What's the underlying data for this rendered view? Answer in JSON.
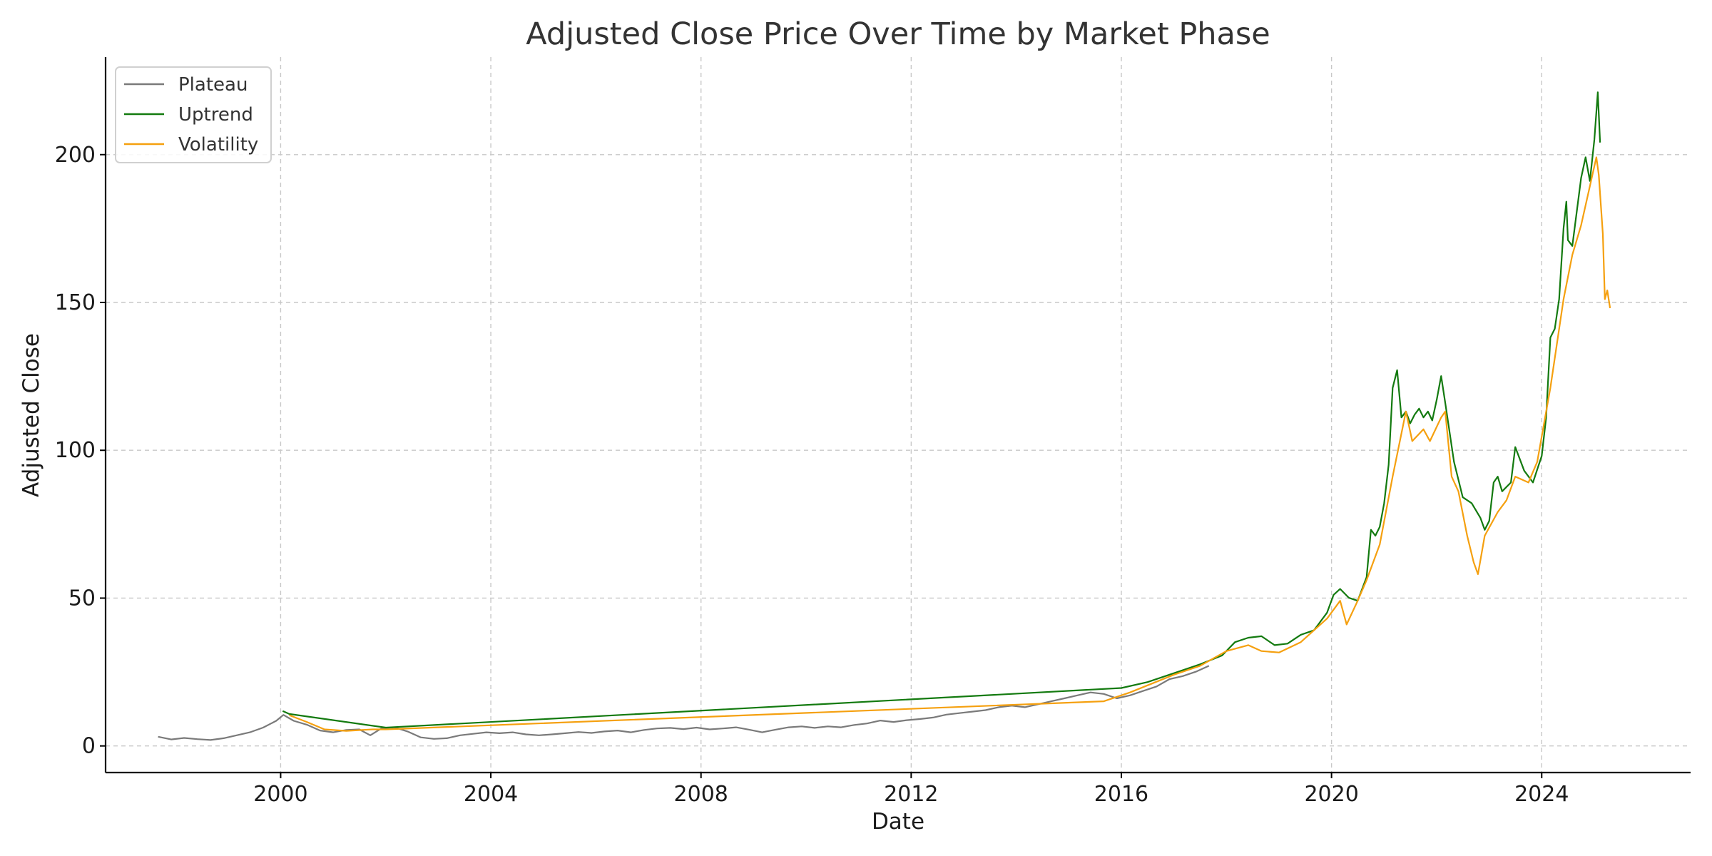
{
  "chart_data": {
    "type": "line",
    "title": "Adjusted Close Price Over Time by Market Phase",
    "xlabel": "Date",
    "ylabel": "Adjusted Close",
    "x_type": "date",
    "xlim": [
      "1996-09-01",
      "2026-11-01"
    ],
    "ylim": [
      -9,
      233
    ],
    "x_ticks": [
      "2000",
      "2004",
      "2008",
      "2012",
      "2016",
      "2020",
      "2024"
    ],
    "y_ticks": [
      "0",
      "50",
      "100",
      "150",
      "200"
    ],
    "grid": true,
    "legend_position": "top-left",
    "series": [
      {
        "name": "Plateau",
        "color": "#7a7a7a",
        "points": [
          [
            "1997-09-01",
            3.1
          ],
          [
            "1997-12-01",
            2.2
          ],
          [
            "1998-03-01",
            2.7
          ],
          [
            "1998-06-01",
            2.3
          ],
          [
            "1998-09-01",
            2.0
          ],
          [
            "1998-12-01",
            2.6
          ],
          [
            "1999-03-01",
            3.6
          ],
          [
            "1999-06-01",
            4.6
          ],
          [
            "1999-09-01",
            6.2
          ],
          [
            "1999-12-01",
            8.5
          ],
          [
            "2000-01-20",
            10.5
          ],
          [
            "2000-04-01",
            8.5
          ],
          [
            "2000-07-01",
            7.2
          ],
          [
            "2000-10-01",
            5.2
          ],
          [
            "2001-01-01",
            4.6
          ],
          [
            "2001-04-01",
            5.4
          ],
          [
            "2001-07-01",
            5.6
          ],
          [
            "2001-09-15",
            3.6
          ],
          [
            "2001-12-01",
            5.9
          ],
          [
            "2002-03-01",
            6.3
          ],
          [
            "2002-06-01",
            4.9
          ],
          [
            "2002-09-01",
            2.9
          ],
          [
            "2002-12-01",
            2.4
          ],
          [
            "2003-03-01",
            2.6
          ],
          [
            "2003-06-01",
            3.6
          ],
          [
            "2003-09-01",
            4.1
          ],
          [
            "2003-12-01",
            4.6
          ],
          [
            "2004-03-01",
            4.3
          ],
          [
            "2004-06-01",
            4.6
          ],
          [
            "2004-09-01",
            3.9
          ],
          [
            "2004-12-01",
            3.6
          ],
          [
            "2005-03-01",
            3.9
          ],
          [
            "2005-06-01",
            4.3
          ],
          [
            "2005-09-01",
            4.7
          ],
          [
            "2005-12-01",
            4.4
          ],
          [
            "2006-03-01",
            4.9
          ],
          [
            "2006-06-01",
            5.2
          ],
          [
            "2006-09-01",
            4.6
          ],
          [
            "2006-12-01",
            5.4
          ],
          [
            "2007-03-01",
            5.9
          ],
          [
            "2007-06-01",
            6.1
          ],
          [
            "2007-09-01",
            5.7
          ],
          [
            "2007-12-01",
            6.2
          ],
          [
            "2008-03-01",
            5.6
          ],
          [
            "2008-06-01",
            5.9
          ],
          [
            "2008-09-01",
            6.3
          ],
          [
            "2008-12-01",
            5.5
          ],
          [
            "2009-03-01",
            4.6
          ],
          [
            "2009-06-01",
            5.5
          ],
          [
            "2009-09-01",
            6.3
          ],
          [
            "2009-12-01",
            6.6
          ],
          [
            "2010-03-01",
            6.1
          ],
          [
            "2010-06-01",
            6.6
          ],
          [
            "2010-09-01",
            6.3
          ],
          [
            "2010-12-01",
            7.1
          ],
          [
            "2011-03-01",
            7.6
          ],
          [
            "2011-06-01",
            8.6
          ],
          [
            "2011-09-01",
            8.1
          ],
          [
            "2011-12-01",
            8.7
          ],
          [
            "2012-03-01",
            9.1
          ],
          [
            "2012-06-01",
            9.6
          ],
          [
            "2012-09-01",
            10.6
          ],
          [
            "2012-12-01",
            11.1
          ],
          [
            "2013-03-01",
            11.6
          ],
          [
            "2013-06-01",
            12.1
          ],
          [
            "2013-09-01",
            13.1
          ],
          [
            "2013-12-01",
            13.6
          ],
          [
            "2014-03-01",
            13.1
          ],
          [
            "2014-06-01",
            14.1
          ],
          [
            "2014-09-01",
            15.1
          ],
          [
            "2014-12-01",
            16.1
          ],
          [
            "2015-03-01",
            17.1
          ],
          [
            "2015-06-01",
            18.1
          ],
          [
            "2015-09-01",
            17.6
          ],
          [
            "2015-12-01",
            16.1
          ],
          [
            "2016-03-01",
            17.1
          ],
          [
            "2016-06-01",
            18.6
          ],
          [
            "2016-09-01",
            20.1
          ],
          [
            "2016-12-01",
            22.6
          ],
          [
            "2017-03-01",
            23.6
          ],
          [
            "2017-06-01",
            25.1
          ],
          [
            "2017-09-01",
            27.1
          ]
        ]
      },
      {
        "name": "Uptrend",
        "color": "#137a0f",
        "points": [
          [
            "2000-01-15",
            11.8
          ],
          [
            "2000-03-01",
            10.8
          ],
          [
            "2002-01-01",
            6.2
          ],
          [
            "2016-01-01",
            19.6
          ],
          [
            "2016-07-01",
            21.6
          ],
          [
            "2017-01-01",
            24.6
          ],
          [
            "2017-07-01",
            27.6
          ],
          [
            "2017-12-01",
            30.6
          ],
          [
            "2018-03-01",
            35.1
          ],
          [
            "2018-06-01",
            36.6
          ],
          [
            "2018-09-01",
            37.1
          ],
          [
            "2018-12-01",
            34.1
          ],
          [
            "2019-03-01",
            34.6
          ],
          [
            "2019-06-01",
            37.6
          ],
          [
            "2019-09-01",
            39.1
          ],
          [
            "2019-12-01",
            45.1
          ],
          [
            "2020-01-15",
            51.1
          ],
          [
            "2020-03-01",
            53.1
          ],
          [
            "2020-05-01",
            50.1
          ],
          [
            "2020-07-01",
            49.1
          ],
          [
            "2020-09-01",
            57.1
          ],
          [
            "2020-10-01",
            73.1
          ],
          [
            "2020-11-01",
            71.1
          ],
          [
            "2020-12-01",
            74.1
          ],
          [
            "2021-01-01",
            82.1
          ],
          [
            "2021-02-01",
            95.1
          ],
          [
            "2021-03-01",
            121.1
          ],
          [
            "2021-04-01",
            127.1
          ],
          [
            "2021-05-01",
            111.1
          ],
          [
            "2021-06-01",
            113.1
          ],
          [
            "2021-07-01",
            109.1
          ],
          [
            "2021-08-01",
            112.1
          ],
          [
            "2021-09-01",
            114.1
          ],
          [
            "2021-10-01",
            111.1
          ],
          [
            "2021-11-01",
            113.1
          ],
          [
            "2021-12-01",
            110.1
          ],
          [
            "2022-01-01",
            117.1
          ],
          [
            "2022-02-01",
            125.1
          ],
          [
            "2022-03-01",
            116.1
          ],
          [
            "2022-05-01",
            96.1
          ],
          [
            "2022-07-01",
            84.1
          ],
          [
            "2022-09-01",
            82.1
          ],
          [
            "2022-11-01",
            77.1
          ],
          [
            "2022-12-01",
            73.1
          ],
          [
            "2023-01-01",
            76.1
          ],
          [
            "2023-02-01",
            89.1
          ],
          [
            "2023-03-01",
            91.1
          ],
          [
            "2023-04-01",
            86.1
          ],
          [
            "2023-06-01",
            89.1
          ],
          [
            "2023-07-01",
            101.1
          ],
          [
            "2023-09-01",
            93.1
          ],
          [
            "2023-11-01",
            89.1
          ],
          [
            "2024-01-01",
            98.1
          ],
          [
            "2024-02-01",
            111.1
          ],
          [
            "2024-03-01",
            138.1
          ],
          [
            "2024-04-01",
            141.1
          ],
          [
            "2024-05-01",
            151.1
          ],
          [
            "2024-06-01",
            175.1
          ],
          [
            "2024-06-20",
            184.1
          ],
          [
            "2024-07-01",
            171.1
          ],
          [
            "2024-08-01",
            169.1
          ],
          [
            "2024-10-01",
            192.1
          ],
          [
            "2024-11-01",
            199.1
          ],
          [
            "2024-12-01",
            191.1
          ],
          [
            "2025-01-01",
            205.1
          ],
          [
            "2025-01-25",
            221.1
          ],
          [
            "2025-02-10",
            204.1
          ]
        ]
      },
      {
        "name": "Volatility",
        "color": "#f5a00f",
        "points": [
          [
            "2000-03-01",
            10.4
          ],
          [
            "2000-07-01",
            8.1
          ],
          [
            "2000-11-01",
            5.6
          ],
          [
            "2001-04-01",
            5.1
          ],
          [
            "2001-10-01",
            5.6
          ],
          [
            "2002-01-01",
            5.6
          ],
          [
            "2015-09-01",
            15.1
          ],
          [
            "2016-03-01",
            18.1
          ],
          [
            "2017-01-01",
            24.1
          ],
          [
            "2017-07-01",
            27.1
          ],
          [
            "2018-01-01",
            32.1
          ],
          [
            "2018-06-01",
            34.1
          ],
          [
            "2018-09-01",
            32.1
          ],
          [
            "2019-01-01",
            31.6
          ],
          [
            "2019-06-01",
            35.1
          ],
          [
            "2019-12-01",
            43.1
          ],
          [
            "2020-03-01",
            49.1
          ],
          [
            "2020-04-15",
            41.1
          ],
          [
            "2020-07-01",
            49.1
          ],
          [
            "2020-09-01",
            56.1
          ],
          [
            "2020-12-01",
            68.1
          ],
          [
            "2021-03-01",
            91.1
          ],
          [
            "2021-06-01",
            113.1
          ],
          [
            "2021-07-15",
            103.1
          ],
          [
            "2021-10-01",
            107.1
          ],
          [
            "2021-11-15",
            103.1
          ],
          [
            "2022-02-01",
            111.1
          ],
          [
            "2022-03-01",
            113.1
          ],
          [
            "2022-04-15",
            91.1
          ],
          [
            "2022-06-01",
            86.1
          ],
          [
            "2022-08-01",
            71.1
          ],
          [
            "2022-09-15",
            62.1
          ],
          [
            "2022-10-15",
            58.1
          ],
          [
            "2022-12-01",
            71.1
          ],
          [
            "2023-03-01",
            79.1
          ],
          [
            "2023-05-01",
            83.1
          ],
          [
            "2023-07-01",
            91.1
          ],
          [
            "2023-10-01",
            89.1
          ],
          [
            "2023-12-01",
            96.1
          ],
          [
            "2024-03-01",
            121.1
          ],
          [
            "2024-06-01",
            151.1
          ],
          [
            "2024-08-01",
            166.1
          ],
          [
            "2024-10-01",
            176.1
          ],
          [
            "2025-01-15",
            199.1
          ],
          [
            "2025-02-01",
            193.1
          ],
          [
            "2025-03-01",
            173.1
          ],
          [
            "2025-03-15",
            151.1
          ],
          [
            "2025-04-01",
            154.1
          ],
          [
            "2025-04-20",
            148.1
          ]
        ]
      }
    ]
  }
}
